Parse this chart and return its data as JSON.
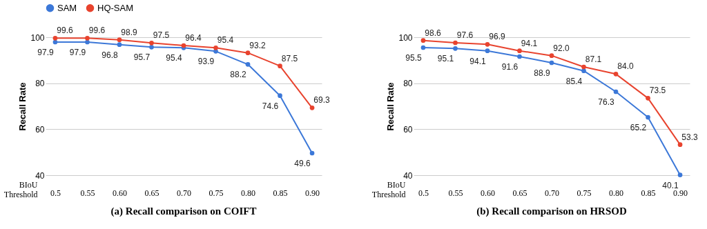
{
  "chart_data": [
    {
      "type": "line",
      "title": "(a) Recall comparison on COIFT",
      "xlabel": "BIoU Threshold",
      "ylabel": "Recall Rate",
      "categories": [
        "0.5",
        "0.55",
        "0.60",
        "0.65",
        "0.70",
        "0.75",
        "0.80",
        "0.85",
        "0.90"
      ],
      "series": [
        {
          "name": "SAM",
          "color": "#3c78d8",
          "values": [
            97.9,
            97.9,
            96.8,
            95.7,
            95.4,
            93.9,
            88.2,
            74.6,
            49.6
          ],
          "value_labels": [
            "97.9",
            "97.9",
            "96.8",
            "95.7",
            "95.4",
            "93.9",
            "88.2",
            "74.6",
            "49.6"
          ]
        },
        {
          "name": "HQ-SAM",
          "color": "#e8432e",
          "values": [
            99.6,
            99.6,
            98.9,
            97.5,
            96.4,
            95.4,
            93.2,
            87.5,
            69.3
          ],
          "value_labels": [
            "99.6",
            "99.6",
            "98.9",
            "97.5",
            "96.4",
            "95.4",
            "93.2",
            "87.5",
            "69.3"
          ]
        }
      ],
      "ylim": [
        40,
        100
      ],
      "yticks": [
        40,
        60,
        80,
        100
      ],
      "grid": "y",
      "legend": "top",
      "marker": "circle"
    },
    {
      "type": "line",
      "title": "(b) Recall comparison on HRSOD",
      "xlabel": "BIoU Threshold",
      "ylabel": "Recall Rate",
      "categories": [
        "0.5",
        "0.55",
        "0.60",
        "0.65",
        "0.70",
        "0.75",
        "0.80",
        "0.85",
        "0.90"
      ],
      "series": [
        {
          "name": "SAM",
          "color": "#3c78d8",
          "values": [
            95.5,
            95.1,
            94.1,
            91.6,
            88.9,
            85.4,
            76.3,
            65.2,
            40.1
          ],
          "value_labels": [
            "95.5",
            "95.1",
            "94.1",
            "91.6",
            "88.9",
            "85.4",
            "76.3",
            "65.2",
            "40.1"
          ]
        },
        {
          "name": "HQ-SAM",
          "color": "#e8432e",
          "values": [
            98.6,
            97.6,
            96.9,
            94.1,
            92.0,
            87.1,
            84.0,
            73.5,
            53.3
          ],
          "value_labels": [
            "98.6",
            "97.6",
            "96.9",
            "94.1",
            "92.0",
            "87.1",
            "84.0",
            "73.5",
            "53.3"
          ]
        }
      ],
      "ylim": [
        40,
        100
      ],
      "yticks": [
        40,
        60,
        80,
        100
      ],
      "grid": "y",
      "legend": "top",
      "marker": "circle"
    }
  ]
}
